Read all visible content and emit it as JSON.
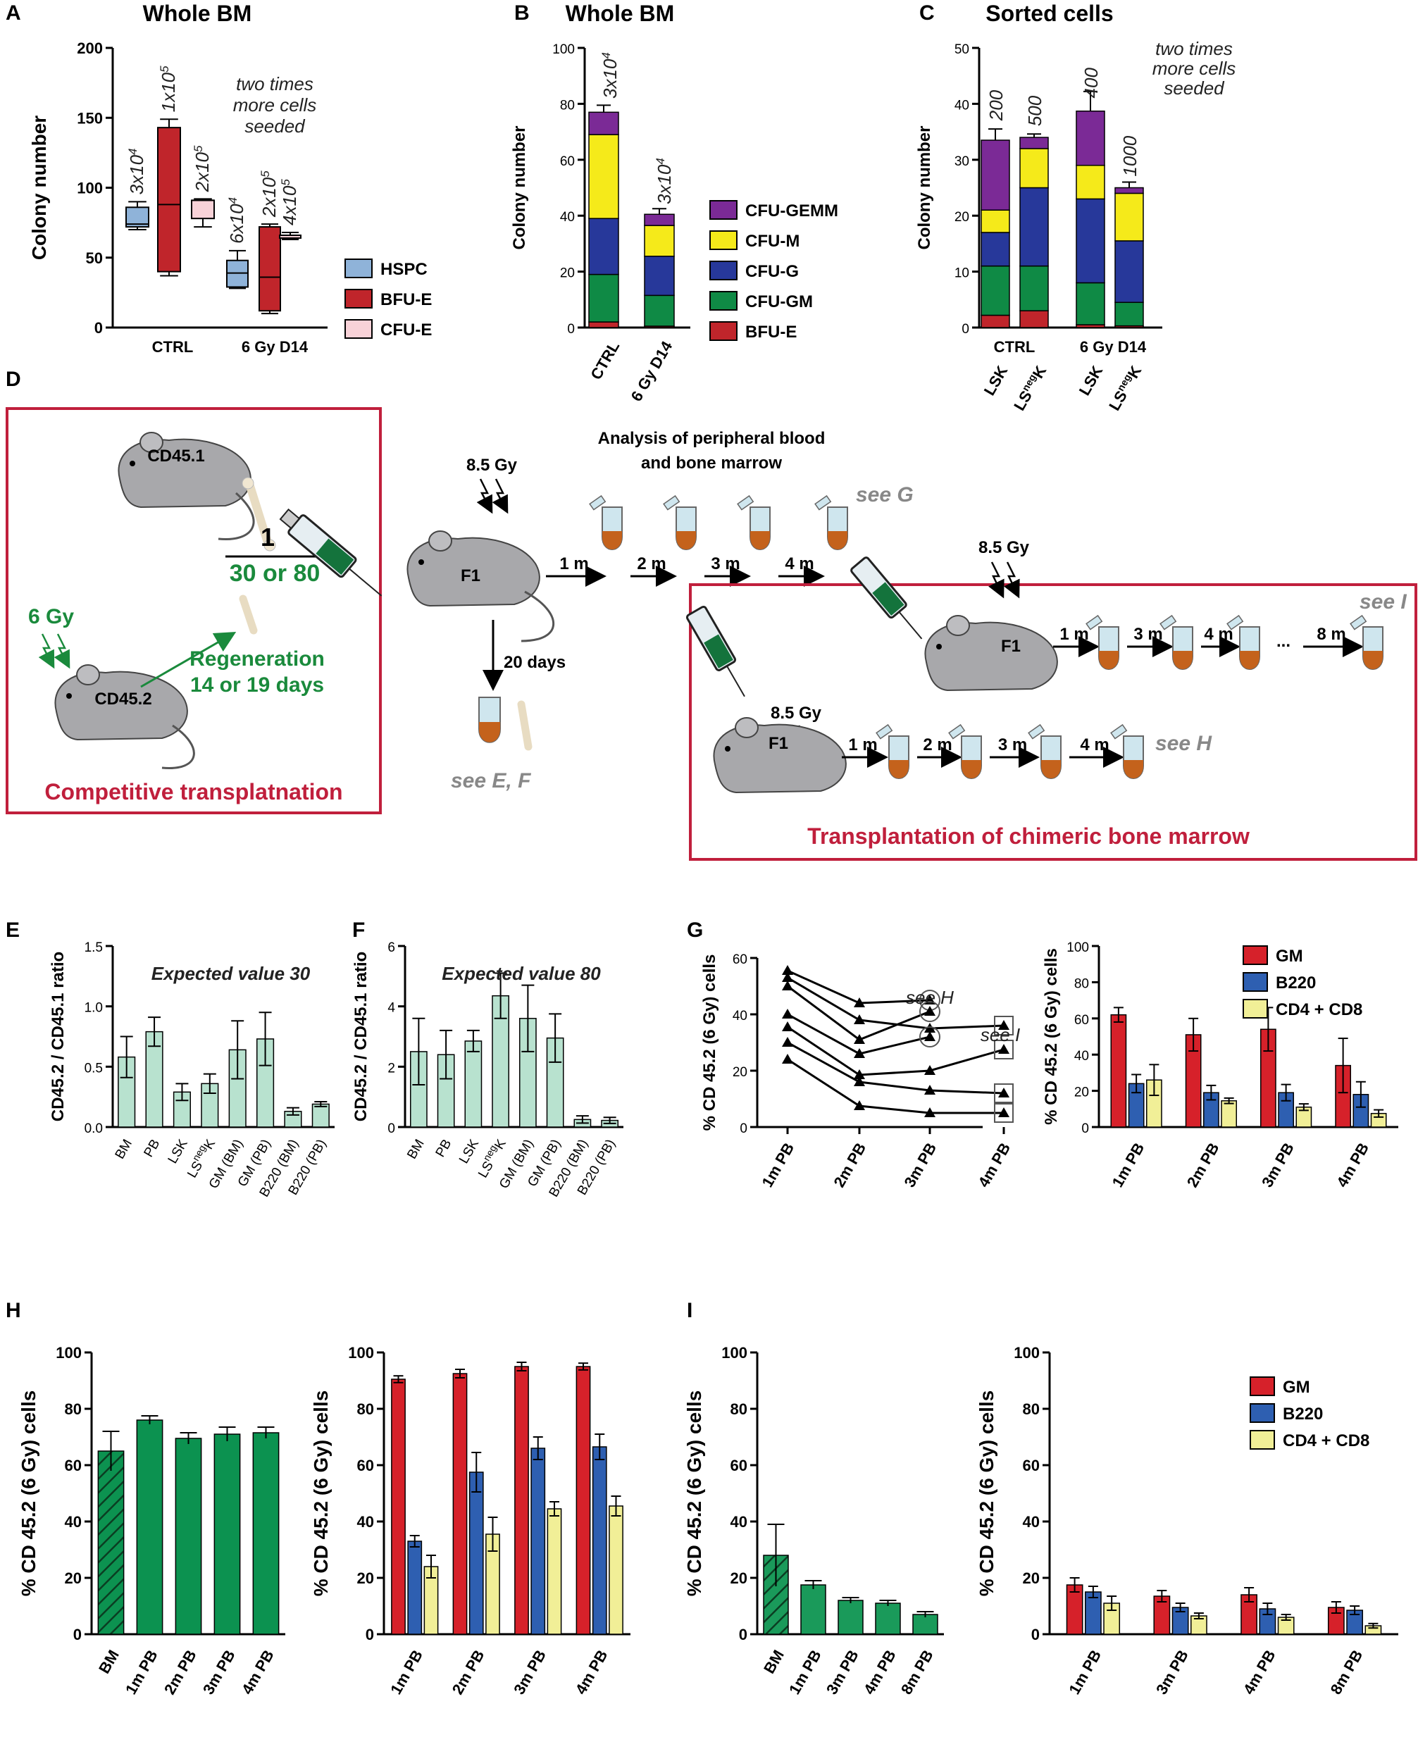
{
  "colors": {
    "hspc": "#8fb3d9",
    "bfue_box": "#ef7d7d",
    "cfue_box": "#f8d2d8",
    "cfu_gemm": "#7b2a96",
    "cfu_m": "#f5ea1a",
    "cfu_g": "#27389a",
    "cfu_gm": "#0f8a45",
    "bfu_e": "#c0252b",
    "mint": "#b8e2cf",
    "gm": "#d6212a",
    "b220": "#2e5fb1",
    "cd48": "#f1ef97",
    "green": "#0c9250",
    "frame": "#c01f3c",
    "diagram_green": "#1a8a3c"
  },
  "panel_labels": {
    "a": "A",
    "b": "B",
    "c": "C",
    "d": "D",
    "e": "E",
    "f": "F",
    "g": "G",
    "h": "H",
    "i": "I"
  },
  "diagram": {
    "gy_85": "8.5 Gy",
    "analysis_line1": "Analysis of peripheral blood",
    "analysis_line2": "and bone marrow",
    "cd451": "CD45.1",
    "cd452": "CD45.2",
    "f1": "F1",
    "six_gy": "6 Gy",
    "ratio_num": "1",
    "ratio_den": "30 or 80",
    "regen1": "Regeneration",
    "regen2": "14 or 19 days",
    "days20": "20 days",
    "see_ef": "see E, F",
    "see_g": "see G",
    "see_h": "see H",
    "see_i": "see I",
    "competitive": "Competitive transplatnation",
    "chimeric": "Transplantation of chimeric bone marrow",
    "m1": "1 m",
    "m2": "2 m",
    "m3": "3 m",
    "m4": "4 m",
    "m8": "8 m",
    "dots": "..."
  },
  "chart_data": [
    {
      "id": "A",
      "type": "box",
      "title": "Whole BM",
      "ylabel": "Colony number",
      "ylim": [
        0,
        200
      ],
      "yticks": [
        "0",
        "50",
        "100",
        "150",
        "200"
      ],
      "groups": [
        "CTRL",
        "6 Gy D14"
      ],
      "legend": [
        "HSPC",
        "BFU-E",
        "CFU-E"
      ],
      "annotation": [
        "two times",
        "more cells",
        "seeded"
      ],
      "boxes": [
        {
          "group": "CTRL",
          "series": "HSPC",
          "min": 70,
          "q1": 72,
          "median": 74,
          "q3": 86,
          "max": 90,
          "label": "3x10",
          "exp": "4"
        },
        {
          "group": "CTRL",
          "series": "BFU-E",
          "min": 37,
          "q1": 40,
          "median": 88,
          "q3": 143,
          "max": 149,
          "label": "1x10",
          "exp": "5"
        },
        {
          "group": "CTRL",
          "series": "CFU-E",
          "min": 72,
          "q1": 78,
          "median": 91,
          "q3": 91,
          "max": 92,
          "label": "2x10",
          "exp": "5"
        },
        {
          "group": "6 Gy D14",
          "series": "HSPC",
          "min": 28,
          "q1": 29,
          "median": 39,
          "q3": 48,
          "max": 55,
          "label": "6x10",
          "exp": "4"
        },
        {
          "group": "6 Gy D14",
          "series": "BFU-E",
          "min": 10,
          "q1": 12,
          "median": 36,
          "q3": 72,
          "max": 74,
          "label": "2x10",
          "exp": "5"
        },
        {
          "group": "6 Gy D14",
          "series": "CFU-E",
          "min": 63,
          "q1": 64,
          "median": 66,
          "q3": 66,
          "max": 68,
          "label": "4x10",
          "exp": "5"
        }
      ]
    },
    {
      "id": "B",
      "type": "stacked-bar",
      "title": "Whole BM",
      "ylabel": "Colony number",
      "ylim": [
        0,
        100
      ],
      "yticks": [
        "0",
        "20",
        "40",
        "60",
        "80",
        "100"
      ],
      "categories": [
        "CTRL",
        "6 Gy D14"
      ],
      "seeded": [
        {
          "label": "3x10",
          "exp": "4"
        },
        {
          "label": "3x10",
          "exp": "4"
        }
      ],
      "series": [
        {
          "name": "BFU-E",
          "values": [
            2,
            0.5
          ]
        },
        {
          "name": "CFU-GM",
          "values": [
            17,
            11
          ]
        },
        {
          "name": "CFU-G",
          "values": [
            20,
            14
          ]
        },
        {
          "name": "CFU-M",
          "values": [
            30,
            11
          ]
        },
        {
          "name": "CFU-GEMM",
          "values": [
            8,
            4
          ]
        }
      ],
      "errors": [
        2.5,
        2
      ]
    },
    {
      "id": "C",
      "type": "stacked-bar",
      "title": "Sorted cells",
      "ylabel": "Colony number",
      "ylim": [
        0,
        50
      ],
      "yticks": [
        "0",
        "10",
        "20",
        "30",
        "40",
        "50"
      ],
      "groups": [
        "CTRL",
        "6 Gy D14"
      ],
      "categories": [
        {
          "main": "LSK",
          "sup": ""
        },
        {
          "main": "LS",
          "sup": "neg",
          "tail": "K"
        },
        {
          "main": "LSK",
          "sup": ""
        },
        {
          "main": "LS",
          "sup": "neg",
          "tail": "K"
        }
      ],
      "seeded": [
        "200",
        "500",
        "400",
        "1000"
      ],
      "annotation": [
        "two times",
        "more cells",
        "seeded"
      ],
      "series": [
        {
          "name": "BFU-E",
          "values": [
            2.2,
            3,
            0.5,
            0.3
          ]
        },
        {
          "name": "CFU-GM",
          "values": [
            8.8,
            8,
            7.5,
            4.2
          ]
        },
        {
          "name": "CFU-G",
          "values": [
            6,
            14,
            15,
            11
          ]
        },
        {
          "name": "CFU-M",
          "values": [
            4,
            7,
            6,
            8.5
          ]
        },
        {
          "name": "CFU-GEMM",
          "values": [
            12.5,
            2,
            9.7,
            1
          ]
        }
      ],
      "errors": [
        2,
        0.6,
        3.5,
        1
      ]
    },
    {
      "id": "E",
      "type": "bar",
      "ylabel": "CD45.2 / CD45.1 ratio",
      "ylim": [
        0,
        1.5
      ],
      "yticks": [
        "0.0",
        "0.5",
        "1.0",
        "1.5"
      ],
      "note": "Expected value 30",
      "categories": [
        "BM",
        "PB",
        "LSK",
        "LSnegK",
        "GM (BM)",
        "GM (PB)",
        "B220 (BM)",
        "B220 (PB)"
      ],
      "values": [
        0.58,
        0.79,
        0.29,
        0.36,
        0.64,
        0.73,
        0.13,
        0.19
      ],
      "errors": [
        0.17,
        0.12,
        0.07,
        0.08,
        0.24,
        0.22,
        0.03,
        0.02
      ]
    },
    {
      "id": "F",
      "type": "bar",
      "ylabel": "CD45.2 / CD45.1 ratio",
      "ylim": [
        0,
        6
      ],
      "yticks": [
        "0",
        "2",
        "4",
        "6"
      ],
      "note": "Expected value 80",
      "categories": [
        "BM",
        "PB",
        "LSK",
        "LSnegK",
        "GM (BM)",
        "GM (PB)",
        "B220 (BM)",
        "B220 (PB)"
      ],
      "values": [
        2.5,
        2.4,
        2.85,
        4.35,
        3.6,
        2.95,
        0.25,
        0.22
      ],
      "errors": [
        1.1,
        0.8,
        0.35,
        0.75,
        1.1,
        0.8,
        0.12,
        0.1
      ]
    },
    {
      "id": "G1",
      "type": "line",
      "ylabel": "% CD 45.2 (6 Gy) cells",
      "ylim": [
        0,
        60
      ],
      "yticks": [
        "0",
        "20",
        "40",
        "60"
      ],
      "x": [
        "1m PB",
        "2m PB",
        "3m PB",
        "4m PB"
      ],
      "series": [
        {
          "name": "m1",
          "values": [
            55.5,
            44,
            45,
            null
          ],
          "circled": [
            false,
            false,
            true,
            false
          ]
        },
        {
          "name": "m2",
          "values": [
            53,
            38,
            35,
            36
          ],
          "boxed": [
            false,
            false,
            false,
            true
          ]
        },
        {
          "name": "m3",
          "values": [
            50,
            31,
            41,
            null
          ],
          "circled": [
            false,
            false,
            true,
            false
          ]
        },
        {
          "name": "m4",
          "values": [
            40,
            26,
            32,
            null
          ],
          "circled": [
            false,
            false,
            true,
            false
          ]
        },
        {
          "name": "m5",
          "values": [
            35.5,
            18.5,
            20,
            27.5
          ],
          "boxed": [
            false,
            false,
            false,
            true
          ]
        },
        {
          "name": "m6",
          "values": [
            30,
            16,
            13,
            12
          ],
          "boxed": [
            false,
            false,
            false,
            true
          ]
        },
        {
          "name": "m7",
          "values": [
            24,
            7.5,
            5,
            5
          ],
          "boxed": [
            false,
            false,
            false,
            true
          ]
        }
      ],
      "notes": [
        "see H",
        "see I"
      ]
    },
    {
      "id": "G2",
      "type": "grouped-bar",
      "ylabel": "% CD 45.2 (6 Gy) cells",
      "ylim": [
        0,
        100
      ],
      "yticks": [
        "0",
        "20",
        "40",
        "60",
        "80",
        "100"
      ],
      "categories": [
        "1m PB",
        "2m PB",
        "3m PB",
        "4m PB"
      ],
      "series": [
        {
          "name": "GM",
          "values": [
            62,
            51,
            54,
            34
          ],
          "errors": [
            4,
            9,
            12,
            15
          ]
        },
        {
          "name": "B220",
          "values": [
            24,
            19,
            19,
            18
          ],
          "errors": [
            5,
            4,
            4.5,
            7
          ]
        },
        {
          "name": "CD4 + CD8",
          "values": [
            26,
            14.5,
            11,
            7.5
          ],
          "errors": [
            8.5,
            1.5,
            1.8,
            2
          ]
        }
      ]
    },
    {
      "id": "H1",
      "type": "bar",
      "ylabel": "% CD 45.2 (6 Gy) cells",
      "ylim": [
        0,
        100
      ],
      "yticks": [
        "0",
        "20",
        "40",
        "60",
        "80",
        "100"
      ],
      "categories": [
        "BM",
        "1m PB",
        "2m PB",
        "3m PB",
        "4m PB"
      ],
      "values": [
        65,
        76,
        69.5,
        71,
        71.5
      ],
      "errors": [
        7,
        1.5,
        2,
        2.5,
        2
      ]
    },
    {
      "id": "H2",
      "type": "grouped-bar",
      "ylabel": "% CD 45.2 (6 Gy) cells",
      "ylim": [
        0,
        100
      ],
      "yticks": [
        "0",
        "20",
        "40",
        "60",
        "80",
        "100"
      ],
      "categories": [
        "1m PB",
        "2m PB",
        "3m PB",
        "4m PB"
      ],
      "series": [
        {
          "name": "GM",
          "values": [
            90.5,
            92.5,
            95,
            95
          ],
          "errors": [
            1.2,
            1.5,
            1.5,
            1.2
          ]
        },
        {
          "name": "B220",
          "values": [
            33,
            57.5,
            66,
            66.5
          ],
          "errors": [
            2,
            7,
            4,
            4.5
          ]
        },
        {
          "name": "CD4 + CD8",
          "values": [
            24,
            35.5,
            44.5,
            45.5
          ],
          "errors": [
            4,
            6,
            2.5,
            3.5
          ]
        }
      ]
    },
    {
      "id": "I1",
      "type": "bar",
      "ylabel": "% CD 45.2 (6 Gy) cells",
      "ylim": [
        0,
        100
      ],
      "yticks": [
        "0",
        "20",
        "40",
        "60",
        "80",
        "100"
      ],
      "categories": [
        "BM",
        "1m PB",
        "3m PB",
        "4m PB",
        "8m PB"
      ],
      "values": [
        28,
        17.5,
        12,
        11,
        7
      ],
      "errors": [
        11,
        1.5,
        1,
        1,
        1
      ]
    },
    {
      "id": "I2",
      "type": "grouped-bar",
      "ylabel": "% CD 45.2 (6 Gy) cells",
      "ylim": [
        0,
        100
      ],
      "yticks": [
        "0",
        "20",
        "40",
        "60",
        "80",
        "100"
      ],
      "categories": [
        "1m PB",
        "3m PB",
        "4m PB",
        "8m PB"
      ],
      "series": [
        {
          "name": "GM",
          "values": [
            17.5,
            13.5,
            14,
            9.5
          ],
          "errors": [
            2.5,
            2,
            2.5,
            2
          ]
        },
        {
          "name": "B220",
          "values": [
            15,
            9.5,
            9,
            8.5
          ],
          "errors": [
            2,
            1.5,
            2,
            1.5
          ]
        },
        {
          "name": "CD4 + CD8",
          "values": [
            11,
            6.5,
            6,
            3
          ],
          "errors": [
            2.5,
            1,
            1,
            0.8
          ]
        }
      ]
    }
  ]
}
